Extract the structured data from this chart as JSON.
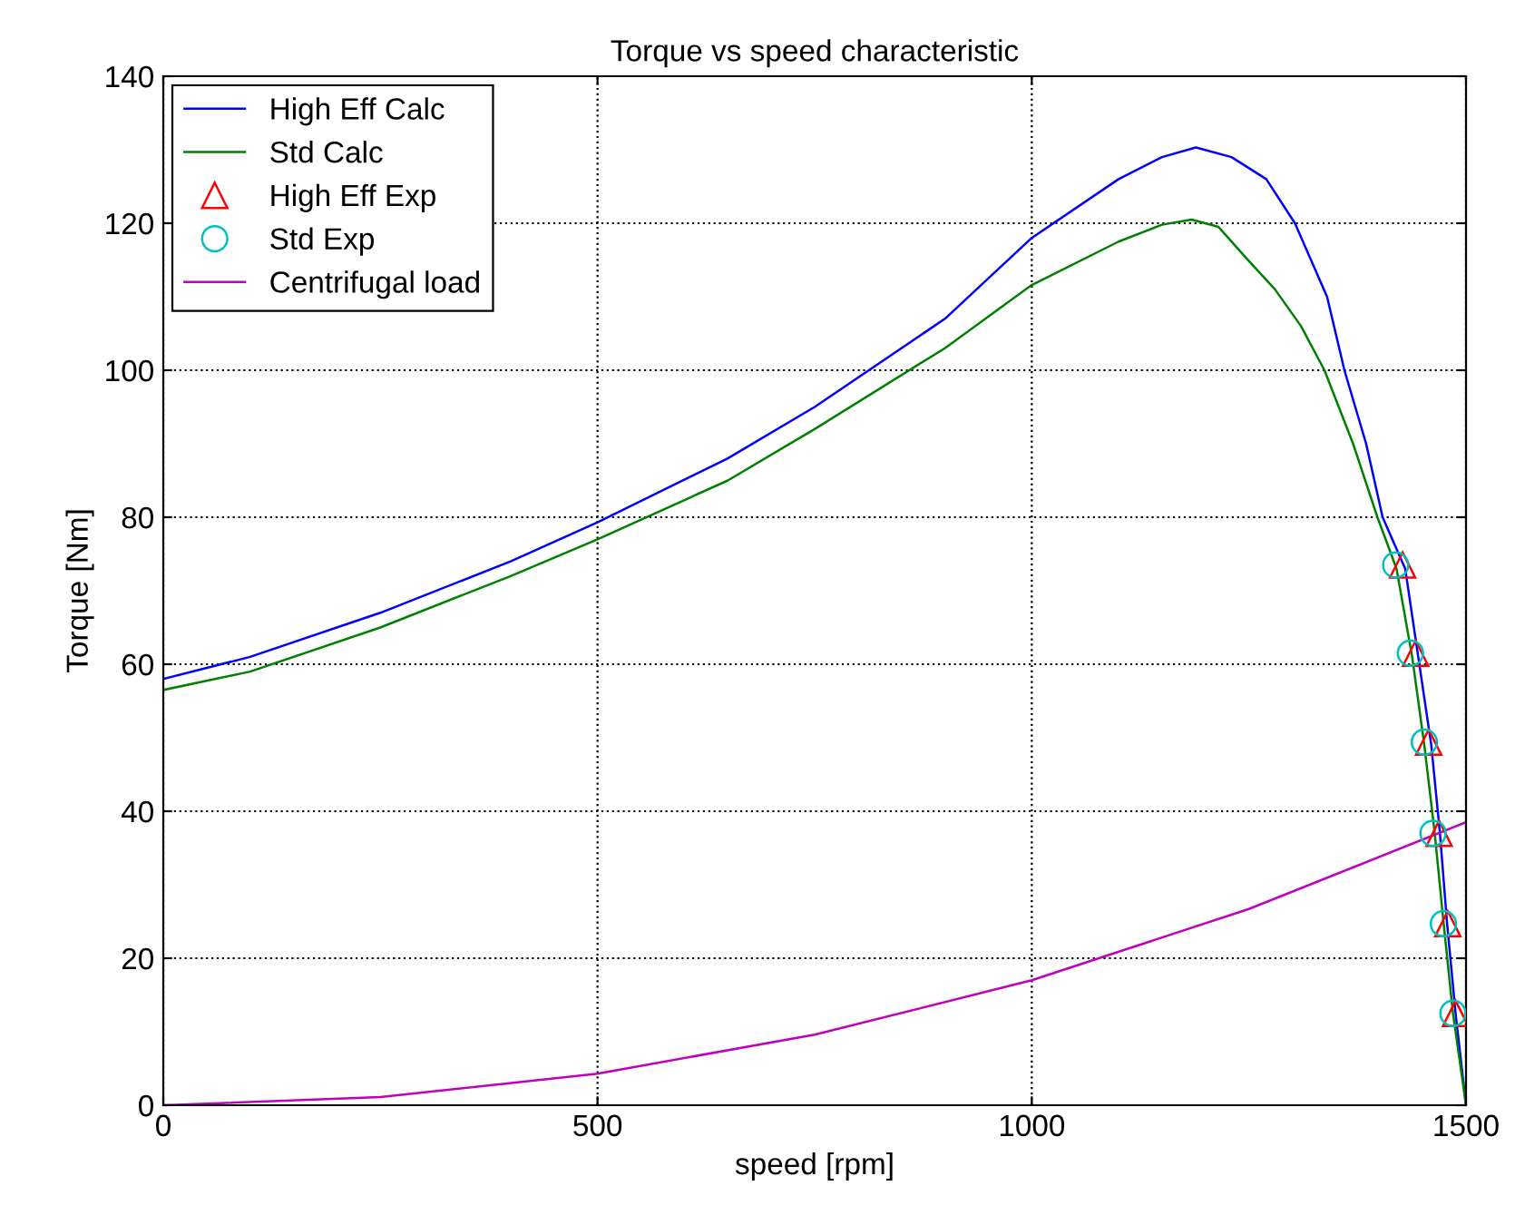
{
  "chart_data": {
    "type": "line",
    "title": "Torque vs speed characteristic",
    "xlabel": "speed [rpm]",
    "ylabel": "Torque [Nm]",
    "xlim": [
      0,
      1500
    ],
    "xticks": [
      0,
      500,
      1000,
      1500
    ],
    "ylim": [
      0,
      140
    ],
    "yticks": [
      0,
      20,
      40,
      60,
      80,
      100,
      120,
      140
    ],
    "grid": true,
    "legend": "top left",
    "series": [
      {
        "name": "High Eff Calc",
        "color": "#0000ff",
        "x": [
          0,
          100,
          250,
          400,
          500,
          650,
          750,
          900,
          1000,
          1100,
          1150,
          1189,
          1230,
          1270,
          1303,
          1340,
          1360,
          1385,
          1404,
          1430,
          1445,
          1460,
          1470,
          1478,
          1488,
          1500
        ],
        "values": [
          58,
          61,
          67,
          74,
          79.3,
          88,
          95,
          107,
          118,
          126,
          129,
          130.3,
          129,
          126,
          120,
          110,
          100,
          90,
          80,
          73,
          61,
          49,
          37,
          25,
          12.5,
          0
        ]
      },
      {
        "name": "Std Calc",
        "color": "#008000",
        "x": [
          0,
          100,
          250,
          400,
          500,
          650,
          750,
          900,
          1000,
          1100,
          1150,
          1184,
          1215,
          1245,
          1280,
          1310,
          1337,
          1370,
          1398,
          1420,
          1438,
          1452,
          1464,
          1474,
          1485,
          1500
        ],
        "values": [
          56.5,
          59,
          65,
          72,
          77,
          85,
          92,
          103,
          111.6,
          117.5,
          119.8,
          120.5,
          119.5,
          115.5,
          111,
          106,
          100,
          90,
          80,
          73,
          61,
          49,
          37,
          25,
          12.5,
          0
        ]
      },
      {
        "name": "High Eff Exp",
        "color": "#ff0000",
        "type": "scatter",
        "marker": "triangle",
        "x": [
          1427,
          1442,
          1457,
          1469,
          1479,
          1488
        ],
        "values": [
          73.5,
          61.5,
          49.4,
          37,
          24.7,
          12.5
        ]
      },
      {
        "name": "Std Exp",
        "color": "#00bfbf",
        "type": "scatter",
        "marker": "circle",
        "x": [
          1419,
          1436,
          1452,
          1462,
          1474,
          1485
        ],
        "values": [
          73.5,
          61.5,
          49.4,
          37,
          24.7,
          12.5
        ]
      },
      {
        "name": "Centrifugal load",
        "color": "#bf00bf",
        "x": [
          0,
          250,
          500,
          750,
          1000,
          1250,
          1500
        ],
        "values": [
          0,
          1.1,
          4.3,
          9.6,
          17,
          26.7,
          38.5
        ]
      }
    ]
  }
}
